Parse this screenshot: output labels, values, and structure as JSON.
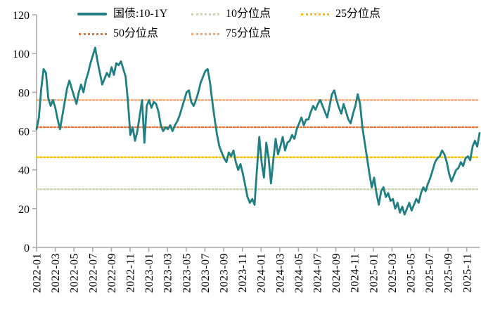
{
  "chart_data": {
    "type": "line",
    "title": "",
    "grid": false,
    "legend_position": "top",
    "ylim": [
      0,
      120
    ],
    "y_ticks": [
      0,
      20,
      40,
      60,
      80,
      100,
      120
    ],
    "x_tick_labels": [
      "2022-01",
      "2022-03",
      "2022-05",
      "2022-07",
      "2022-09",
      "2022-11",
      "2023-01",
      "2023-03",
      "2023-05",
      "2023-07",
      "2023-09",
      "2023-11",
      "2024-01",
      "2024-03",
      "2024-05",
      "2024-07",
      "2024-09",
      "2024-11",
      "2025-01",
      "2025-03",
      "2025-05",
      "2025-07",
      "2025-09",
      "2025-11"
    ],
    "series": [
      {
        "name": "国债:10-1Y",
        "color": "#1F7F83",
        "style": "solid",
        "frequency": "weekly",
        "start": "2022-01",
        "end": "2025-12",
        "values": [
          61,
          67,
          82,
          92,
          90,
          77,
          73,
          76,
          72,
          66,
          61,
          68,
          75,
          82,
          86,
          82,
          78,
          74,
          80,
          84,
          80,
          86,
          90,
          95,
          99,
          103,
          96,
          90,
          84,
          87,
          90,
          88,
          93,
          89,
          95,
          94,
          96,
          92,
          88,
          75,
          58,
          62,
          55,
          60,
          68,
          76,
          54,
          73,
          76,
          72,
          75,
          74,
          70,
          63,
          60,
          62,
          61,
          63,
          60,
          63,
          65,
          68,
          72,
          76,
          80,
          81,
          75,
          73,
          76,
          80,
          85,
          88,
          91,
          92,
          85,
          75,
          66,
          58,
          52,
          49,
          46,
          44,
          49,
          47,
          50,
          44,
          40,
          43,
          38,
          32,
          26,
          23,
          25,
          22,
          40,
          57,
          44,
          36,
          54,
          46,
          33,
          45,
          56,
          48,
          52,
          57,
          50,
          54,
          55,
          58,
          56,
          61,
          64,
          67,
          63,
          66,
          66,
          70,
          73,
          71,
          74,
          76,
          73,
          70,
          67,
          73,
          79,
          81,
          76,
          72,
          69,
          74,
          70,
          66,
          64,
          69,
          73,
          79,
          74,
          62,
          54,
          46,
          38,
          31,
          36,
          28,
          22,
          29,
          31,
          26,
          28,
          24,
          25,
          20,
          23,
          18,
          21,
          17,
          20,
          23,
          19,
          22,
          25,
          23,
          28,
          31,
          29,
          33,
          36,
          40,
          44,
          46,
          47,
          50,
          48,
          44,
          38,
          34,
          37,
          40,
          41,
          44,
          42,
          46,
          47,
          45,
          52,
          55,
          52,
          59
        ]
      }
    ],
    "reference_lines": [
      {
        "name": "10分位点",
        "value": 30,
        "color": "#C9D6B2"
      },
      {
        "name": "25分位点",
        "value": 46.5,
        "color": "#FFC000"
      },
      {
        "name": "50分位点",
        "value": 62,
        "color": "#E97132"
      },
      {
        "name": "75分位点",
        "value": 76,
        "color": "#F5A670"
      }
    ],
    "axis_color": "#A6A6A6"
  }
}
